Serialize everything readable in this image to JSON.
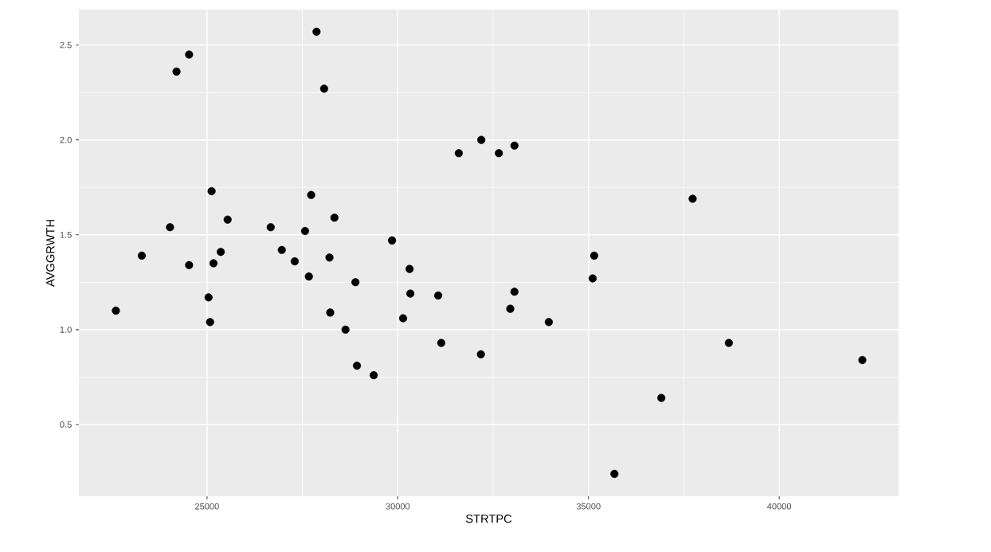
{
  "chart_data": {
    "type": "scatter",
    "xlabel": "STRTPC",
    "ylabel": "AVGGRWTH",
    "x": [
      27870,
      24530,
      24200,
      28070,
      25120,
      27730,
      25540,
      28340,
      24030,
      26670,
      27570,
      29850,
      23290,
      25360,
      26960,
      28210,
      24530,
      25170,
      27300,
      27670,
      32190,
      31600,
      32650,
      33060,
      37730,
      30310,
      35150,
      35110,
      22610,
      25040,
      25080,
      28890,
      28230,
      28630,
      28930,
      29370,
      30330,
      31060,
      30140,
      33060,
      32950,
      33960,
      31140,
      32180,
      36910,
      35680,
      38680,
      42180
    ],
    "series": [
      {
        "color": "#000000",
        "values": [
          2.57,
          2.45,
          2.36,
          2.27,
          1.73,
          1.71,
          1.58,
          1.59,
          1.54,
          1.54,
          1.52,
          1.47,
          1.39,
          1.41,
          1.42,
          1.38,
          1.34,
          1.35,
          1.36,
          1.28,
          2.0,
          1.93,
          1.93,
          1.97,
          1.69,
          1.32,
          1.39,
          1.27,
          1.1,
          1.17,
          1.04,
          1.25,
          1.09,
          1.0,
          0.81,
          0.76,
          1.19,
          1.18,
          1.06,
          1.2,
          1.11,
          1.04,
          0.93,
          0.87,
          0.64,
          0.24,
          0.93,
          0.84
        ]
      }
    ],
    "xlim": [
      21640,
      43130
    ],
    "ylim": [
      0.122,
      2.687
    ],
    "xticks": [
      25000,
      30000,
      35000,
      40000
    ],
    "yticks": [
      0.5,
      {
        "value": 1,
        "label": "1.0"
      },
      1.5,
      {
        "value": 2,
        "label": "2.0"
      },
      2.5
    ],
    "grid": true
  }
}
